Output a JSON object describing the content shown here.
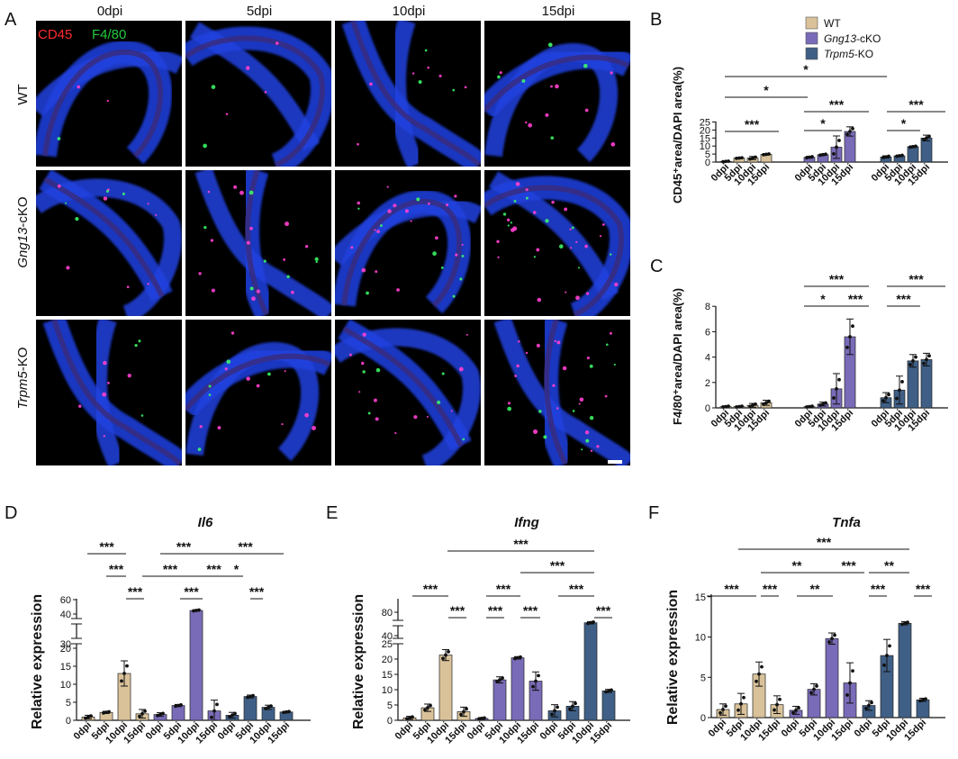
{
  "panel_labels": [
    "A",
    "B",
    "C",
    "D",
    "E",
    "F"
  ],
  "panel_a": {
    "columns": [
      "0dpi",
      "5dpi",
      "10dpi",
      "15dpi"
    ],
    "rows": [
      {
        "label": "WT",
        "italic": "",
        "suffix": ""
      },
      {
        "label": "",
        "italic": "Gng13",
        "suffix": "-cKO"
      },
      {
        "label": "",
        "italic": "Trpm5",
        "suffix": "-KO"
      }
    ],
    "overlay": {
      "marker1": "CD45",
      "marker2": "F4/80",
      "color1": "#ff2b2b",
      "color2": "#23c93c"
    }
  },
  "legend": [
    {
      "italic": "",
      "label": "WT",
      "color": "#d9c29a"
    },
    {
      "italic": "Gng13",
      "label": "-cKO",
      "color": "#7a6bb8"
    },
    {
      "italic": "Trpm5",
      "label": "-KO",
      "color": "#3f5f86"
    }
  ],
  "chart_data": [
    {
      "id": "B",
      "type": "bar",
      "ylabel": "CD45⁺area/DAPI area(%)",
      "ylim": [
        0,
        25
      ],
      "yticks": [
        0,
        5,
        10,
        15,
        20,
        25
      ],
      "categories": [
        "0dpi",
        "5dpi",
        "10dpi",
        "15dpi"
      ],
      "series": [
        {
          "name": "WT",
          "color": "#d9c29a",
          "values": [
            0.4,
            2.5,
            2.5,
            4.8
          ],
          "err": [
            0.3,
            0.3,
            1.0,
            0.4
          ]
        },
        {
          "name": "Gng13-cKO",
          "color": "#7a6bb8",
          "values": [
            3.0,
            4.6,
            9.3,
            19.1
          ],
          "err": [
            0.6,
            0.5,
            7.0,
            2.9
          ]
        },
        {
          "name": "Trpm5-KO",
          "color": "#3f5f86",
          "values": [
            3.2,
            3.9,
            9.6,
            15.0
          ],
          "err": [
            0.7,
            0.5,
            0.5,
            1.8
          ]
        }
      ],
      "significance": [
        "*",
        "*",
        "***",
        "***",
        "*",
        "***",
        "*"
      ]
    },
    {
      "id": "C",
      "type": "bar",
      "ylabel": "F4/80⁺area/DAPI area(%)",
      "ylim": [
        0,
        8
      ],
      "yticks": [
        0,
        2,
        4,
        6,
        8
      ],
      "categories": [
        "0dpi",
        "5dpi",
        "10dpi",
        "15dpi"
      ],
      "series": [
        {
          "name": "WT",
          "color": "#d9c29a",
          "values": [
            0.1,
            0.1,
            0.2,
            0.4
          ],
          "err": [
            0.05,
            0.05,
            0.15,
            0.2
          ]
        },
        {
          "name": "Gng13-cKO",
          "color": "#7a6bb8",
          "values": [
            0.1,
            0.3,
            1.5,
            5.6
          ],
          "err": [
            0.05,
            0.15,
            1.2,
            1.4
          ]
        },
        {
          "name": "Trpm5-KO",
          "color": "#3f5f86",
          "values": [
            0.8,
            1.4,
            3.7,
            3.8
          ],
          "err": [
            0.4,
            1.1,
            0.5,
            0.5
          ]
        }
      ],
      "significance": [
        "***",
        "*",
        "***",
        "***",
        "***"
      ]
    },
    {
      "id": "D",
      "type": "bar",
      "title": "Il6",
      "ylabel": "Relative expression",
      "broken_axis": true,
      "yticks_low": [
        0,
        5,
        10,
        15,
        20
      ],
      "yticks_high": [
        30,
        40,
        60
      ],
      "categories": [
        "0dpi",
        "5dpi",
        "10dpi",
        "15dpi"
      ],
      "series": [
        {
          "name": "WT",
          "color": "#d9c29a",
          "values": [
            0.9,
            2.2,
            13.0,
            1.8
          ],
          "err": [
            0.5,
            0.3,
            3.5,
            1.2
          ]
        },
        {
          "name": "Gng13-cKO",
          "color": "#7a6bb8",
          "values": [
            1.6,
            4.1,
            45.0,
            2.6
          ],
          "err": [
            0.5,
            0.3,
            1.0,
            3.0
          ]
        },
        {
          "name": "Trpm5-KO",
          "color": "#3f5f86",
          "values": [
            1.4,
            6.6,
            3.6,
            2.3
          ],
          "err": [
            0.8,
            0.4,
            0.6,
            0.2
          ]
        }
      ],
      "significance": [
        "***",
        "***",
        "***",
        "***",
        "***",
        "***",
        "***",
        "***",
        "***",
        "*"
      ]
    },
    {
      "id": "E",
      "type": "bar",
      "title": "Ifng",
      "ylabel": "Relative expression",
      "broken_axis": true,
      "yticks_low": [
        0,
        5,
        10,
        15,
        20,
        25
      ],
      "yticks_high": [
        40,
        80
      ],
      "categories": [
        "0dpi",
        "5dpi",
        "10dpi",
        "15dpi"
      ],
      "series": [
        {
          "name": "WT",
          "color": "#d9c29a",
          "values": [
            0.8,
            4.1,
            21.3,
            2.8
          ],
          "err": [
            0.5,
            1.2,
            1.8,
            1.5
          ]
        },
        {
          "name": "Gng13-cKO",
          "color": "#7a6bb8",
          "values": [
            0.6,
            13.2,
            20.4,
            12.8
          ],
          "err": [
            0.3,
            1.0,
            0.4,
            3.0
          ]
        },
        {
          "name": "Trpm5-KO",
          "color": "#3f5f86",
          "values": [
            3.1,
            4.6,
            62.0,
            9.6
          ],
          "err": [
            2.0,
            1.5,
            2.0,
            0.5
          ]
        }
      ],
      "significance": [
        "***",
        "***",
        "***",
        "***",
        "***",
        "***",
        "***",
        "***",
        "***"
      ]
    },
    {
      "id": "F",
      "type": "bar",
      "title": "Tnfa",
      "ylabel": "Relative expression",
      "ylim": [
        0,
        15
      ],
      "yticks": [
        0,
        5,
        10,
        15
      ],
      "categories": [
        "0dpi",
        "5dpi",
        "10dpi",
        "15dpi"
      ],
      "series": [
        {
          "name": "WT",
          "color": "#d9c29a",
          "values": [
            1.0,
            1.7,
            5.4,
            1.6
          ],
          "err": [
            0.7,
            1.3,
            1.5,
            1.1
          ]
        },
        {
          "name": "Gng13-cKO",
          "color": "#7a6bb8",
          "values": [
            0.9,
            3.5,
            9.8,
            4.3
          ],
          "err": [
            0.5,
            0.7,
            0.7,
            2.5
          ]
        },
        {
          "name": "Trpm5-KO",
          "color": "#3f5f86",
          "values": [
            1.5,
            7.7,
            11.7,
            2.2
          ],
          "err": [
            0.6,
            2.0,
            0.2,
            0.2
          ]
        }
      ],
      "significance": [
        "***",
        "**",
        "***",
        "**",
        "***",
        "***",
        "**",
        "***",
        "***"
      ]
    }
  ]
}
